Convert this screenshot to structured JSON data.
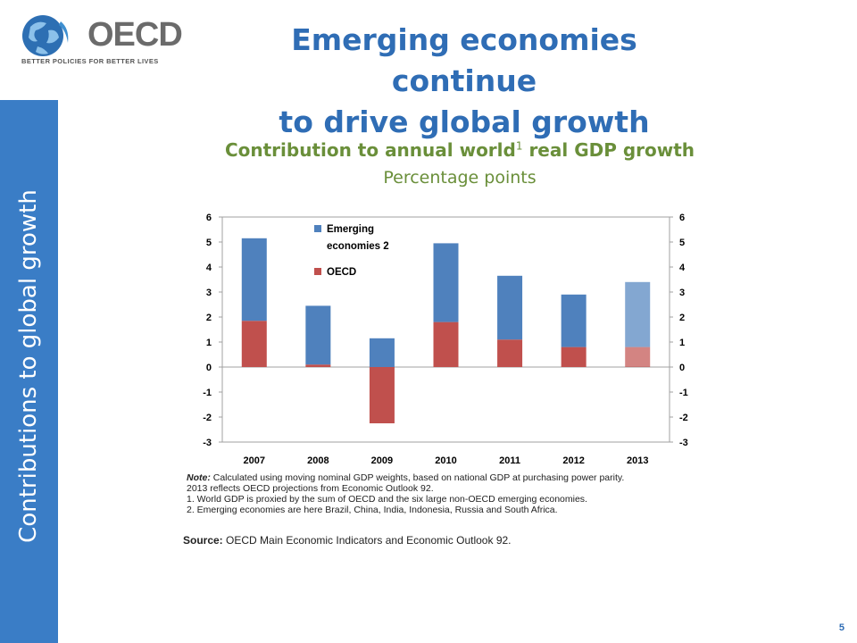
{
  "logo": {
    "wordmark": "OECD",
    "tagline": "BETTER POLICIES FOR BETTER LIVES"
  },
  "slide": {
    "title_line1": "Emerging economies continue",
    "title_line2": "to drive global growth",
    "side_label": "Contributions to global growth",
    "page_number": "5"
  },
  "chart_header": {
    "title_pre": "Contribution to annual world",
    "title_sup": "1",
    "title_post": " real GDP growth",
    "subtitle": "Percentage points"
  },
  "notes": {
    "note_label": "Note:",
    "note_text": " Calculated using moving nominal GDP weights, based on national GDP at purchasing power parity.",
    "note_line2": "2013 reflects OECD projections from Economic Outlook 92.",
    "footnote1": "1.    World GDP is proxied by the sum of OECD and the six large non-OECD emerging economies.",
    "footnote2": "2.   Emerging economies are here Brazil, China, India, Indonesia, Russia and South Africa.",
    "source_label": "Source:",
    "source_text": " OECD Main Economic Indicators and Economic Outlook 92."
  },
  "colors": {
    "accent": "#2f6db5",
    "band": "#3a7dc6",
    "chart_title": "#6a8f3a",
    "emerging": "#4f81bd",
    "oecd": "#c0504d"
  },
  "chart_data": {
    "type": "bar",
    "stacked": true,
    "categories": [
      "2007",
      "2008",
      "2009",
      "2010",
      "2011",
      "2012",
      "2013"
    ],
    "series": [
      {
        "name": "OECD",
        "color": "#c0504d",
        "values": [
          1.85,
          0.1,
          -2.25,
          1.8,
          1.1,
          0.8,
          0.8
        ]
      },
      {
        "name": "Emerging economies 2",
        "color": "#4f81bd",
        "values": [
          3.3,
          2.35,
          1.15,
          3.15,
          2.55,
          2.1,
          2.6
        ]
      }
    ],
    "projection_category": "2013",
    "ylim": [
      -3,
      6
    ],
    "yticks": [
      "6",
      "5",
      "4",
      "3",
      "2",
      "1",
      "0",
      "-1",
      "-2",
      "-3"
    ],
    "y2ticks": [
      "6",
      "5",
      "4",
      "3",
      "2",
      "1",
      "0",
      "-1",
      "-2",
      "-3"
    ],
    "legend_labels": [
      "Emerging economies 2",
      "OECD"
    ],
    "legend_position": "top-left",
    "grid": false
  }
}
